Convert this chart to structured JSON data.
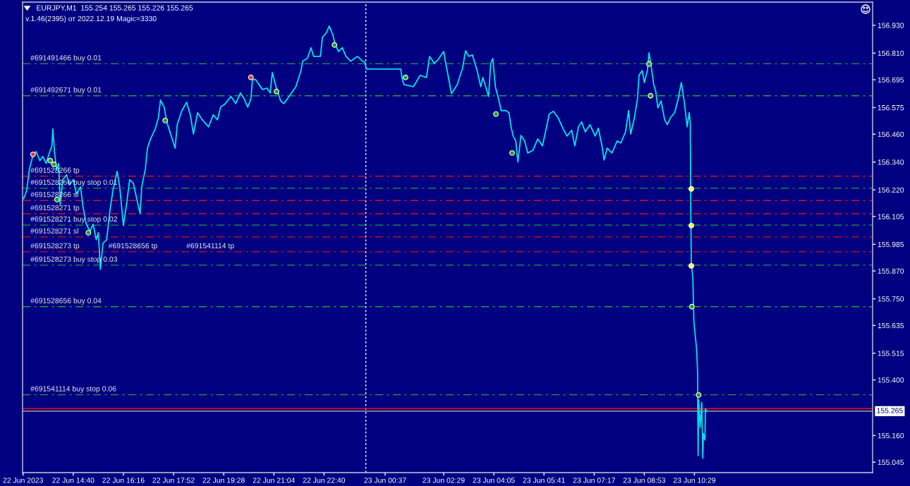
{
  "chart_data": {
    "type": "line",
    "title": "EURJPY,M1  155.254 155.265 155.226 155.265",
    "subtitle": "v.1.46(2395) от 2022.12.19 Magic=3330",
    "xlim": [
      "2023-06-22T13:03",
      "2023-06-23T16:10"
    ],
    "xticks": [
      {
        "value": "2023-06-22T13:04",
        "label": "22 Jun 2023"
      },
      {
        "value": "2023-06-22T14:40",
        "label": "22 Jun 14:40"
      },
      {
        "value": "2023-06-22T16:16",
        "label": "22 Jun 16:16"
      },
      {
        "value": "2023-06-22T17:52",
        "label": "22 Jun 17:52"
      },
      {
        "value": "2023-06-22T19:28",
        "label": "22 Jun 19:28"
      },
      {
        "value": "2023-06-22T21:04",
        "label": "22 Jun 21:04"
      },
      {
        "value": "2023-06-22T22:40",
        "label": "22 Jun 22:40"
      },
      {
        "value": "2023-06-23T00:37",
        "label": "23 Jun 00:37"
      },
      {
        "value": "2023-06-23T02:29",
        "label": "23 Jun 02:29"
      },
      {
        "value": "2023-06-23T04:05",
        "label": "23 Jun 04:05"
      },
      {
        "value": "2023-06-23T05:41",
        "label": "23 Jun 05:41"
      },
      {
        "value": "2023-06-23T07:17",
        "label": "23 Jun 07:17"
      },
      {
        "value": "2023-06-23T08:53",
        "label": "23 Jun 08:53"
      },
      {
        "value": "2023-06-23T10:29",
        "label": "23 Jun 10:29"
      }
    ],
    "ylim": [
      155.0,
      157.03
    ],
    "yticks": [
      {
        "value": 156.93,
        "label": "156.930"
      },
      {
        "value": 156.81,
        "label": "156.810"
      },
      156.695,
      156.575,
      {
        "value": 156.46,
        "label": "156.460"
      },
      {
        "value": 156.34,
        "label": "156.340"
      },
      {
        "value": 156.22,
        "label": "156.220"
      },
      156.105,
      155.985,
      {
        "value": 155.87,
        "label": "155.870"
      },
      {
        "value": 155.75,
        "label": "155.750"
      },
      155.635,
      155.515,
      {
        "value": 155.4,
        "label": "155.400"
      },
      {
        "value": 155.16,
        "label": "155.160"
      },
      155.045
    ],
    "series": [
      {
        "color": "#00e0e8",
        "x": [
          "2023-06-22T13:05",
          "2023-06-22T13:11",
          "2023-06-22T13:16",
          "2023-06-22T13:23",
          "2023-06-22T13:29",
          "2023-06-22T13:36",
          "2023-06-22T13:42",
          "2023-06-22T13:48",
          "2023-06-22T13:55",
          "2023-06-22T13:59",
          "2023-06-22T14:01",
          "2023-06-22T14:04",
          "2023-06-22T14:08",
          "2023-06-22T14:12",
          "2023-06-22T14:15",
          "2023-06-22T14:20",
          "2023-06-22T14:27",
          "2023-06-22T14:33",
          "2023-06-22T14:40",
          "2023-06-22T14:46",
          "2023-06-22T14:54",
          "2023-06-22T14:59",
          "2023-06-22T15:05",
          "2023-06-22T15:12",
          "2023-06-22T15:18",
          "2023-06-22T15:24",
          "2023-06-22T15:28",
          "2023-06-22T15:32",
          "2023-06-22T15:37",
          "2023-06-22T15:44",
          "2023-06-22T15:50",
          "2023-06-22T15:56",
          "2023-06-22T16:04",
          "2023-06-22T16:09",
          "2023-06-22T16:16",
          "2023-06-22T16:22",
          "2023-06-22T16:28",
          "2023-06-22T16:35",
          "2023-06-22T16:41",
          "2023-06-22T16:48",
          "2023-06-22T16:51",
          "2023-06-22T16:58",
          "2023-06-22T17:02",
          "2023-06-22T17:08",
          "2023-06-22T17:17",
          "2023-06-22T17:23",
          "2023-06-22T17:27",
          "2023-06-22T17:34",
          "2023-06-22T17:39",
          "2023-06-22T17:55",
          "2023-06-22T17:59",
          "2023-06-22T18:08",
          "2023-06-22T18:17",
          "2023-06-22T18:24",
          "2023-06-22T18:30",
          "2023-06-22T18:38",
          "2023-06-22T18:47",
          "2023-06-22T18:59",
          "2023-06-22T19:08",
          "2023-06-22T19:16",
          "2023-06-22T19:22",
          "2023-06-22T19:31",
          "2023-06-22T19:42",
          "2023-06-22T19:51",
          "2023-06-22T20:00",
          "2023-06-22T20:07",
          "2023-06-22T20:14",
          "2023-06-22T20:20",
          "2023-06-22T20:23",
          "2023-06-22T20:29",
          "2023-06-22T20:42",
          "2023-06-22T20:51",
          "2023-06-22T20:57",
          "2023-06-22T21:01",
          "2023-06-22T21:08",
          "2023-06-22T21:17",
          "2023-06-22T21:23",
          "2023-06-22T21:33",
          "2023-06-22T21:46",
          "2023-06-22T21:56",
          "2023-06-22T21:59",
          "2023-06-22T22:08",
          "2023-06-22T22:15",
          "2023-06-22T22:20",
          "2023-06-22T22:33",
          "2023-06-22T22:37",
          "2023-06-22T22:44",
          "2023-06-22T22:50",
          "2023-06-22T22:57",
          "2023-06-22T23:01",
          "2023-06-22T23:08",
          "2023-06-22T23:15",
          "2023-06-22T23:22",
          "2023-06-22T23:31",
          "2023-06-22T23:44",
          "2023-06-22T23:54",
          "2023-06-22T23:58",
          "2023-06-23T00:01",
          "2023-06-23T01:07",
          "2023-06-23T01:09",
          "2023-06-23T01:13",
          "2023-06-23T01:31",
          "2023-06-23T01:44",
          "2023-06-23T01:56",
          "2023-06-23T02:02",
          "2023-06-23T02:11",
          "2023-06-23T02:18",
          "2023-06-23T02:29",
          "2023-06-23T02:33",
          "2023-06-23T02:44",
          "2023-06-23T02:55",
          "2023-06-23T03:05",
          "2023-06-23T03:11",
          "2023-06-23T03:17",
          "2023-06-23T03:24",
          "2023-06-23T03:33",
          "2023-06-23T03:40",
          "2023-06-23T03:44",
          "2023-06-23T03:55",
          "2023-06-23T03:59",
          "2023-06-23T04:03",
          "2023-06-23T04:08",
          "2023-06-23T04:15",
          "2023-06-23T04:19",
          "2023-06-23T04:28",
          "2023-06-23T04:34",
          "2023-06-23T04:38",
          "2023-06-23T04:42",
          "2023-06-23T04:47",
          "2023-06-23T04:51",
          "2023-06-23T04:57",
          "2023-06-23T05:04",
          "2023-06-23T05:10",
          "2023-06-23T05:20",
          "2023-06-23T05:29",
          "2023-06-23T05:38",
          "2023-06-23T05:46",
          "2023-06-23T05:51",
          "2023-06-23T05:59",
          "2023-06-23T06:08",
          "2023-06-23T06:17",
          "2023-06-23T06:25",
          "2023-06-23T06:34",
          "2023-06-23T06:40",
          "2023-06-23T06:47",
          "2023-06-23T06:53",
          "2023-06-23T07:00",
          "2023-06-23T07:09",
          "2023-06-23T07:19",
          "2023-06-23T07:25",
          "2023-06-23T07:32",
          "2023-06-23T07:36",
          "2023-06-23T07:42",
          "2023-06-23T07:51",
          "2023-06-23T08:01",
          "2023-06-23T08:08",
          "2023-06-23T08:17",
          "2023-06-23T08:23",
          "2023-06-23T08:27",
          "2023-06-23T08:34",
          "2023-06-23T08:40",
          "2023-06-23T08:43",
          "2023-06-23T08:49",
          "2023-06-23T08:53",
          "2023-06-23T08:59",
          "2023-06-23T09:02",
          "2023-06-23T09:06",
          "2023-06-23T09:11",
          "2023-06-23T09:15",
          "2023-06-23T09:19",
          "2023-06-23T09:25",
          "2023-06-23T09:32",
          "2023-06-23T09:37",
          "2023-06-23T09:43",
          "2023-06-23T09:51",
          "2023-06-23T09:57",
          "2023-06-23T10:04",
          "2023-06-23T10:10",
          "2023-06-23T10:15",
          "2023-06-23T10:19",
          "2023-06-23T10:21",
          "2023-06-23T10:22",
          "2023-06-23T10:23",
          "2023-06-23T10:26",
          "2023-06-23T10:27",
          "2023-06-23T10:28",
          "2023-06-23T10:33",
          "2023-06-23T10:35",
          "2023-06-23T10:36",
          "2023-06-23T10:37",
          "2023-06-23T10:40",
          "2023-06-23T10:43",
          "2023-06-23T10:45",
          "2023-06-23T10:46",
          "2023-06-23T10:49",
          "2023-06-23T10:50",
          "2023-06-23T10:53"
        ],
        "values": [
          156.181,
          156.218,
          156.309,
          156.37,
          156.385,
          156.346,
          156.364,
          156.334,
          156.385,
          156.407,
          156.483,
          156.385,
          156.309,
          156.334,
          156.157,
          156.264,
          156.285,
          156.242,
          156.264,
          156.203,
          156.233,
          156.142,
          156.072,
          156.041,
          156.072,
          156.005,
          156.035,
          155.877,
          155.99,
          156.005,
          156.127,
          156.218,
          156.3,
          156.233,
          156.066,
          156.157,
          156.264,
          156.248,
          156.187,
          156.117,
          156.233,
          156.309,
          156.4,
          156.44,
          156.483,
          156.531,
          156.607,
          156.577,
          156.513,
          156.4,
          156.501,
          156.562,
          156.598,
          156.544,
          156.461,
          156.553,
          156.522,
          156.492,
          156.544,
          156.522,
          156.577,
          156.592,
          156.623,
          156.592,
          156.638,
          156.613,
          156.577,
          156.613,
          156.696,
          156.696,
          156.653,
          156.659,
          156.638,
          156.726,
          156.665,
          156.604,
          156.592,
          156.623,
          156.665,
          156.735,
          156.775,
          156.787,
          156.833,
          156.796,
          156.796,
          156.878,
          156.896,
          156.927,
          156.887,
          156.848,
          156.817,
          156.833,
          156.796,
          156.775,
          156.796,
          156.775,
          156.772,
          156.741,
          156.741,
          156.705,
          156.674,
          156.665,
          156.714,
          156.705,
          156.796,
          156.766,
          156.781,
          156.817,
          156.766,
          156.635,
          156.674,
          156.744,
          156.82,
          156.796,
          156.802,
          156.735,
          156.665,
          156.705,
          156.623,
          156.766,
          156.787,
          156.665,
          156.604,
          156.562,
          156.562,
          156.553,
          156.492,
          156.452,
          156.431,
          156.34,
          156.455,
          156.431,
          156.379,
          156.391,
          156.44,
          156.41,
          156.492,
          156.547,
          156.559,
          156.531,
          156.486,
          156.452,
          156.477,
          156.41,
          156.492,
          156.513,
          156.47,
          156.501,
          156.452,
          156.486,
          156.41,
          156.349,
          156.4,
          156.379,
          156.431,
          156.422,
          156.47,
          156.562,
          156.461,
          156.531,
          156.613,
          156.714,
          156.735,
          156.683,
          156.735,
          156.811,
          156.757,
          156.674,
          156.644,
          156.574,
          156.604,
          156.522,
          156.501,
          156.531,
          156.553,
          156.604,
          156.683,
          156.592,
          156.492,
          156.553,
          156.51,
          156.127,
          155.904,
          155.838,
          155.728,
          155.649,
          155.536,
          155.436,
          155.074,
          155.314,
          155.195,
          155.302,
          155.062,
          155.168,
          155.141,
          155.275,
          155.265
        ]
      },
      {
        "type": "scatter",
        "marker": "circle",
        "x": [
          "2023-06-22T13:23",
          "2023-06-22T13:56",
          "2023-06-22T14:03",
          "2023-06-22T14:09",
          "2023-06-22T15:09",
          "2023-06-22T17:36",
          "2023-06-22T20:20",
          "2023-06-22T21:09",
          "2023-06-22T23:00",
          "2023-06-23T01:16",
          "2023-06-23T04:09",
          "2023-06-23T04:40",
          "2023-06-23T09:02",
          "2023-06-23T09:05",
          "2023-06-23T10:23",
          "2023-06-23T10:23",
          "2023-06-23T10:23",
          "2023-06-23T10:24",
          "2023-06-23T10:37"
        ],
        "values": [
          156.373,
          156.346,
          156.33,
          156.178,
          156.035,
          156.519,
          156.705,
          156.644,
          156.845,
          156.705,
          156.547,
          156.379,
          156.763,
          156.626,
          156.224,
          156.066,
          155.892,
          155.716,
          155.335
        ],
        "colors": [
          "#ff3030",
          "#20a020",
          "#20a020",
          "#20a020",
          "#20a020",
          "#20a020",
          "#ff3030",
          "#20a020",
          "#20a020",
          "#20a020",
          "#20a020",
          "#20a020",
          "#20a020",
          "#20a020",
          "#ffff40",
          "#ffff40",
          "#ffff40",
          "#20a020",
          "#20a020"
        ]
      }
    ],
    "ref_lines": [
      {
        "axis": "x",
        "value": "2023-06-23T00:00",
        "color": "#ffffff",
        "line_style": "dotted"
      },
      {
        "axis": "y",
        "value": 156.764,
        "label": "#691491466 buy 0.01",
        "color": "#1e9e3e",
        "line_style": "dashed"
      },
      {
        "axis": "y",
        "value": 156.626,
        "label": "#691492671 buy 0.01",
        "color": "#1e9e3e",
        "line_style": "dashed"
      },
      {
        "axis": "y",
        "value": 156.279,
        "label": "#691528266 tp",
        "color": "#e01010",
        "line_style": "dashed"
      },
      {
        "axis": "y",
        "value": 156.227,
        "label": "#691528266 buy stop 0.01",
        "color": "#1e9e3e",
        "line_style": "dashed"
      },
      {
        "axis": "y",
        "value": 156.174,
        "label": "#691528266 sl",
        "color": "#e01010",
        "line_style": "dashed"
      },
      {
        "axis": "y",
        "value": 156.117,
        "label": "#691528271 tp",
        "color": "#e01010",
        "line_style": "dashed"
      },
      {
        "axis": "y",
        "value": 156.068,
        "label": "#691528271 buy stop 0.02",
        "color": "#1e9e3e",
        "line_style": "dashed"
      },
      {
        "axis": "y",
        "value": 156.017,
        "label": "#691528271 sl",
        "color": "#e01010",
        "line_style": "dashed"
      },
      {
        "axis": "y",
        "value": 155.953,
        "label": "#691528273 tp",
        "color": "#e01010",
        "line_style": "dashed"
      },
      {
        "axis": "y",
        "value": 155.895,
        "label": "#691528273 buy stop 0.03",
        "color": "#1e9e3e",
        "line_style": "dashed"
      },
      {
        "axis": "y",
        "value": 155.716,
        "label": "#691528656 buy 0.04",
        "color": "#1e9e3e",
        "line_style": "dashed"
      },
      {
        "axis": "y",
        "value": 155.336,
        "label": "#691541114 buy stop 0.06",
        "color": "#1e9e3e",
        "line_style": "dashed"
      },
      {
        "axis": "y",
        "value": 155.276,
        "color": "#ff0000",
        "line_style": "solid"
      },
      {
        "axis": "y",
        "value": 155.265,
        "label": "155.265",
        "color": "#c0c0c0",
        "line_style": "solid"
      }
    ],
    "annotations": [
      {
        "text": "#691528656 tp",
        "y": 155.953
      },
      {
        "text": "#691541114 tp",
        "y": 155.953
      }
    ]
  }
}
